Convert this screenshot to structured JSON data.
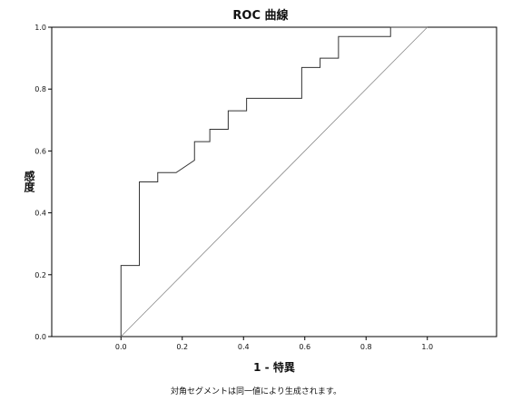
{
  "chart_data": {
    "type": "line",
    "title": "ROC 曲線",
    "xlabel": "1 - 特異",
    "ylabel": "感度",
    "xlim": [
      -0.226,
      1.226
    ],
    "ylim": [
      0,
      1
    ],
    "xticks": [
      "0.0",
      "0.2",
      "0.4",
      "0.6",
      "0.8",
      "1.0"
    ],
    "yticks": [
      "0.0",
      "0.2",
      "0.4",
      "0.6",
      "0.8",
      "1.0"
    ],
    "grid": false,
    "legend": "none",
    "footnote": "対角セグメントは同一値により生成されます。",
    "series": [
      {
        "kind": "roc-step",
        "x": [
          0,
          0,
          0.06,
          0.06,
          0.12,
          0.12,
          0.18,
          0.18,
          0.24,
          0.24,
          0.29,
          0.29,
          0.35,
          0.35,
          0.41,
          0.41,
          0.59,
          0.59,
          0.65,
          0.65,
          0.71,
          0.71,
          0.88,
          0.88,
          1.0
        ],
        "y": [
          0,
          0.23,
          0.23,
          0.5,
          0.5,
          0.53,
          0.53,
          0.53,
          0.57,
          0.63,
          0.63,
          0.67,
          0.67,
          0.73,
          0.73,
          0.77,
          0.77,
          0.87,
          0.87,
          0.9,
          0.9,
          0.97,
          0.97,
          1.0,
          1.0
        ],
        "color": "#333333"
      },
      {
        "kind": "diagonal",
        "x": [
          0,
          1
        ],
        "y": [
          0,
          1
        ],
        "color": "#888888"
      }
    ]
  }
}
